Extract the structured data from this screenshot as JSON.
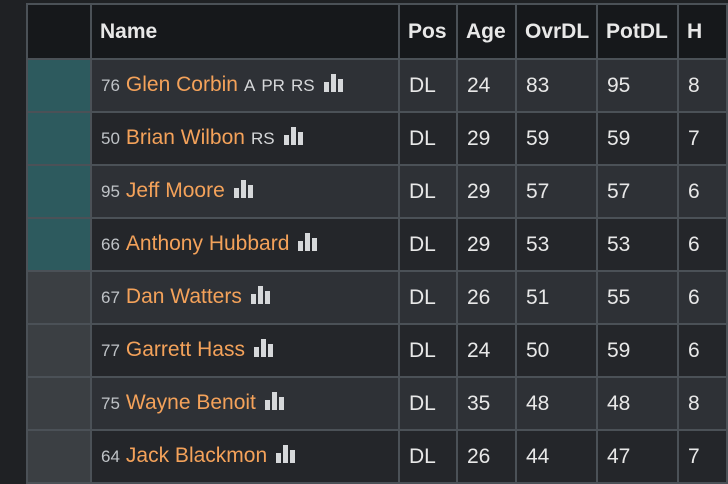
{
  "table": {
    "headers": [
      "",
      "Name",
      "Pos",
      "Age",
      "OvrDL",
      "PotDL",
      "H"
    ],
    "rows": [
      {
        "flag": "teal",
        "number": "76",
        "name": "Glen Corbin",
        "skills": [
          "A",
          "PR",
          "RS"
        ],
        "pos": "DL",
        "age": "24",
        "ovr": "83",
        "pot": "95",
        "extra": "8"
      },
      {
        "flag": "teal",
        "number": "50",
        "name": "Brian Wilbon",
        "skills": [
          "RS"
        ],
        "pos": "DL",
        "age": "29",
        "ovr": "59",
        "pot": "59",
        "extra": "7"
      },
      {
        "flag": "teal",
        "number": "95",
        "name": "Jeff Moore",
        "skills": [],
        "pos": "DL",
        "age": "29",
        "ovr": "57",
        "pot": "57",
        "extra": "6"
      },
      {
        "flag": "teal",
        "number": "66",
        "name": "Anthony Hubbard",
        "skills": [],
        "pos": "DL",
        "age": "29",
        "ovr": "53",
        "pot": "53",
        "extra": "6"
      },
      {
        "flag": "gray",
        "number": "67",
        "name": "Dan Watters",
        "skills": [],
        "pos": "DL",
        "age": "26",
        "ovr": "51",
        "pot": "55",
        "extra": "6"
      },
      {
        "flag": "gray",
        "number": "77",
        "name": "Garrett Hass",
        "skills": [],
        "pos": "DL",
        "age": "24",
        "ovr": "50",
        "pot": "59",
        "extra": "6"
      },
      {
        "flag": "gray",
        "number": "75",
        "name": "Wayne Benoit",
        "skills": [],
        "pos": "DL",
        "age": "35",
        "ovr": "48",
        "pot": "48",
        "extra": "8"
      },
      {
        "flag": "gray",
        "number": "64",
        "name": "Jack Blackmon",
        "skills": [],
        "pos": "DL",
        "age": "26",
        "ovr": "44",
        "pot": "47",
        "extra": "7"
      }
    ]
  },
  "colors": {
    "link": "#f4a25a",
    "starter_flag": "#2d5a5e",
    "reserve_flag": "#3b3f43"
  },
  "icons": {
    "ratings": "bar-chart-icon"
  }
}
